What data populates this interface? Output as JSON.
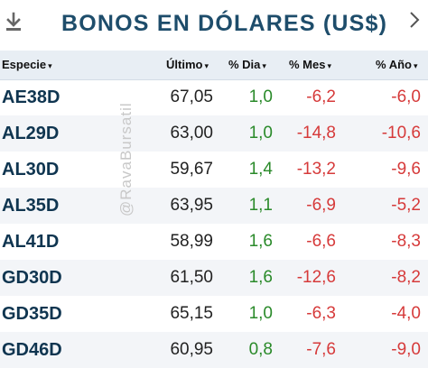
{
  "header": {
    "title": "BONOS EN DÓLARES (US$)",
    "download_icon": "download-icon",
    "chevron_icon": "chevron-right-icon",
    "title_color": "#1e4d6b"
  },
  "columns": {
    "especie": "Especie",
    "ultimo": "Último",
    "dia": "% Dia",
    "mes": "% Mes",
    "anio": "% Año",
    "sort_arrow": "▾"
  },
  "watermark": "@RavaBursatil",
  "colors": {
    "positive": "#2a8a2a",
    "negative": "#d63a3a",
    "ticker": "#0f3550"
  },
  "rows": [
    {
      "ticker": "AE38D",
      "ultimo": "67,05",
      "dia": "1,0",
      "mes": "-6,2",
      "anio": "-6,0"
    },
    {
      "ticker": "AL29D",
      "ultimo": "63,00",
      "dia": "1,0",
      "mes": "-14,8",
      "anio": "-10,6"
    },
    {
      "ticker": "AL30D",
      "ultimo": "59,67",
      "dia": "1,4",
      "mes": "-13,2",
      "anio": "-9,6"
    },
    {
      "ticker": "AL35D",
      "ultimo": "63,95",
      "dia": "1,1",
      "mes": "-6,9",
      "anio": "-5,2"
    },
    {
      "ticker": "AL41D",
      "ultimo": "58,99",
      "dia": "1,6",
      "mes": "-6,6",
      "anio": "-8,3"
    },
    {
      "ticker": "GD30D",
      "ultimo": "61,50",
      "dia": "1,6",
      "mes": "-12,6",
      "anio": "-8,2"
    },
    {
      "ticker": "GD35D",
      "ultimo": "65,15",
      "dia": "1,0",
      "mes": "-6,3",
      "anio": "-4,0"
    },
    {
      "ticker": "GD46D",
      "ultimo": "60,95",
      "dia": "0,8",
      "mes": "-7,6",
      "anio": "-9,0"
    }
  ]
}
